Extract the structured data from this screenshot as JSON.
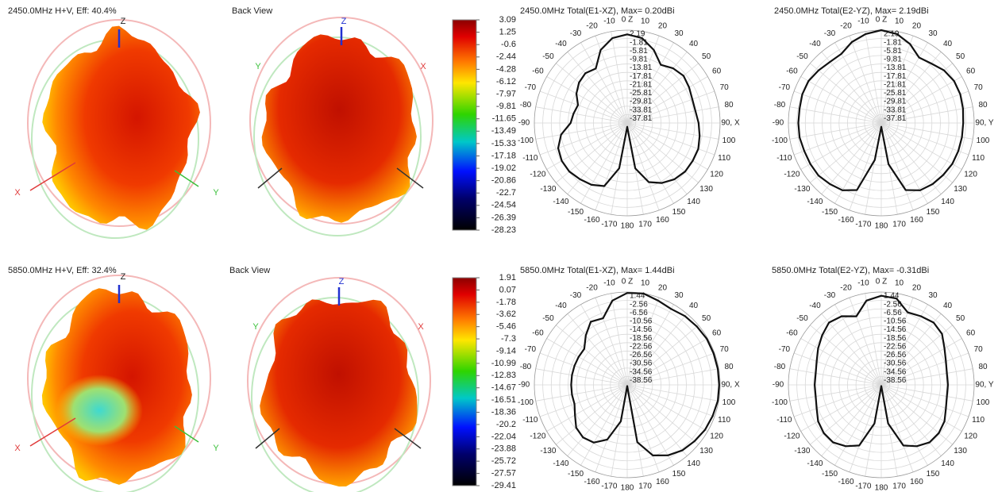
{
  "chart_data": [
    {
      "type": "pattern3d",
      "title": "2450.0MHz H+V, Eff: 40.4%",
      "axes": {
        "z": "Z",
        "x": "X",
        "y": "Y"
      }
    },
    {
      "type": "pattern3d",
      "title": "Back View",
      "axes": {
        "z": "Z",
        "x": "X",
        "y": "Y"
      }
    },
    {
      "type": "colorbar",
      "lim": [
        3.09,
        -28.23
      ],
      "ticks": [
        3.09,
        1.25,
        -0.6,
        -2.44,
        -4.28,
        -6.12,
        -7.97,
        -9.81,
        -11.65,
        -13.49,
        -15.33,
        -17.18,
        -19.02,
        -20.86,
        -22.7,
        -24.54,
        -26.39,
        -28.23
      ]
    },
    {
      "type": "polar",
      "title": "2450.0MHz Total(E1-XZ), Max= 0.20dBi",
      "color": "#111111",
      "rlim": [
        -41.81,
        2.19
      ],
      "rticks": [
        2.19,
        -1.81,
        -5.81,
        -9.81,
        -13.81,
        -17.81,
        -21.81,
        -25.81,
        -29.81,
        -33.81,
        -37.81
      ],
      "thetaticks": [
        {
          "value": 0,
          "label": "0 Z"
        },
        10,
        20,
        30,
        40,
        50,
        60,
        70,
        80,
        {
          "value": 90,
          "label": "90, X"
        },
        100,
        110,
        120,
        130,
        140,
        150,
        160,
        170,
        180,
        -170,
        -160,
        -150,
        -140,
        -130,
        -120,
        -110,
        -100,
        -90,
        -80,
        -70,
        -60,
        -50,
        -40,
        -30,
        -20,
        -10
      ],
      "theta": [
        -170,
        -160,
        -150,
        -140,
        -130,
        -120,
        -110,
        -100,
        -90,
        -80,
        -70,
        -60,
        -50,
        -40,
        -30,
        -20,
        -10,
        0,
        10,
        20,
        30,
        40,
        50,
        60,
        70,
        80,
        90,
        100,
        110,
        120,
        130,
        140,
        150,
        160,
        170,
        180
      ],
      "r": [
        -20,
        -10,
        -8,
        -7,
        -6,
        -6,
        -7,
        -10,
        -15,
        -16,
        -17,
        -14,
        -12,
        -11,
        -12,
        -5,
        -1,
        0.2,
        -1,
        -5,
        -10,
        -8,
        -7,
        -8,
        -9,
        -9,
        -8,
        -7,
        -6,
        -6,
        -6,
        -7,
        -9,
        -12,
        -20,
        -40
      ]
    },
    {
      "type": "polar",
      "title": "2450.0MHz Total(E2-YZ), Max= 2.19dBi",
      "color": "#111111",
      "rlim": [
        -41.81,
        2.19
      ],
      "rticks": [
        2.19,
        -1.81,
        -5.81,
        -9.81,
        -13.81,
        -17.81,
        -21.81,
        -25.81,
        -29.81,
        -33.81,
        -37.81
      ],
      "thetaticks": [
        {
          "value": 0,
          "label": "0 Z"
        },
        10,
        20,
        30,
        40,
        50,
        60,
        70,
        80,
        {
          "value": 90,
          "label": "90, Y"
        },
        100,
        110,
        120,
        130,
        140,
        150,
        160,
        170,
        180,
        -170,
        -160,
        -150,
        -140,
        -130,
        -120,
        -110,
        -100,
        -90,
        -80,
        -70,
        -60,
        -50,
        -40,
        -30,
        -20,
        -10
      ],
      "theta": [
        -170,
        -160,
        -150,
        -140,
        -130,
        -120,
        -110,
        -100,
        -90,
        -80,
        -70,
        -60,
        -50,
        -40,
        -30,
        -20,
        -10,
        0,
        10,
        20,
        30,
        40,
        50,
        60,
        70,
        80,
        90,
        100,
        110,
        120,
        130,
        140,
        150,
        160,
        170,
        180
      ],
      "r": [
        -24,
        -8,
        -5,
        -4,
        -3,
        -3,
        -3,
        -2.5,
        -2.5,
        -2.5,
        -2,
        -2,
        -3,
        -4,
        -4,
        -1,
        1,
        2.19,
        1,
        -2,
        -6,
        -5,
        -3,
        -2,
        -2,
        -2.5,
        -3,
        -3,
        -3,
        -3,
        -3.5,
        -4,
        -5,
        -8,
        -22,
        -40
      ]
    },
    {
      "type": "pattern3d",
      "title": "5850.0MHz H+V, Eff: 32.4%",
      "axes": {
        "z": "Z",
        "x": "X",
        "y": "Y"
      }
    },
    {
      "type": "pattern3d",
      "title": "Back View",
      "axes": {
        "z": "Z",
        "x": "X",
        "y": "Y"
      }
    },
    {
      "type": "colorbar",
      "lim": [
        1.91,
        -29.41
      ],
      "ticks": [
        1.91,
        0.07,
        -1.78,
        -3.62,
        -5.46,
        -7.3,
        -9.14,
        -10.99,
        -12.83,
        -14.67,
        -16.51,
        -18.36,
        -20.2,
        -22.04,
        -23.88,
        -25.72,
        -27.57,
        -29.41
      ]
    },
    {
      "type": "polar",
      "title": "5850.0MHz Total(E1-XZ), Max= 1.44dBi",
      "color": "#111111",
      "rlim": [
        -42.56,
        1.44
      ],
      "rticks": [
        1.44,
        -2.56,
        -6.56,
        -10.56,
        -14.56,
        -18.56,
        -22.56,
        -26.56,
        -30.56,
        -34.56,
        -38.56
      ],
      "thetaticks": [
        {
          "value": 0,
          "label": "0 Z"
        },
        10,
        20,
        30,
        40,
        50,
        60,
        70,
        80,
        {
          "value": 90,
          "label": "90, X"
        },
        100,
        110,
        120,
        130,
        140,
        150,
        160,
        170,
        180,
        -170,
        -160,
        -150,
        -140,
        -130,
        -120,
        -110,
        -100,
        -90,
        -80,
        -70,
        -60,
        -50,
        -40,
        -30,
        -20,
        -10
      ],
      "theta": [
        -170,
        -160,
        -150,
        -140,
        -130,
        -120,
        -110,
        -100,
        -90,
        -80,
        -70,
        -60,
        -50,
        -40,
        -30,
        -20,
        -10,
        0,
        10,
        20,
        30,
        40,
        50,
        60,
        70,
        80,
        90,
        100,
        110,
        120,
        130,
        140,
        150,
        160,
        170,
        180
      ],
      "r": [
        -25,
        -15,
        -11,
        -10,
        -11,
        -14,
        -16,
        -16,
        -16,
        -16,
        -16,
        -16,
        -16,
        -12,
        -8,
        -9,
        -2,
        1,
        1.44,
        0,
        -1,
        0,
        0.5,
        1,
        1,
        1,
        1,
        1,
        0.5,
        0,
        -1,
        -2,
        -4,
        -7,
        -15,
        -42
      ]
    },
    {
      "type": "polar",
      "title": "5850.0MHz Total(E2-YZ), Max= -0.31dBi",
      "color": "#111111",
      "rlim": [
        -42.56,
        1.44
      ],
      "rticks": [
        1.44,
        -2.56,
        -6.56,
        -10.56,
        -14.56,
        -18.56,
        -22.56,
        -26.56,
        -30.56,
        -34.56,
        -38.56
      ],
      "thetaticks": [
        {
          "value": 0,
          "label": "0 Z"
        },
        10,
        20,
        30,
        40,
        50,
        60,
        70,
        80,
        {
          "value": 90,
          "label": "90, Y"
        },
        100,
        110,
        120,
        130,
        140,
        150,
        160,
        170,
        180,
        -170,
        -160,
        -150,
        -140,
        -130,
        -120,
        -110,
        -100,
        -90,
        -80,
        -70,
        -60,
        -50,
        -40,
        -30,
        -20,
        -10
      ],
      "theta": [
        -170,
        -160,
        -150,
        -140,
        -130,
        -120,
        -110,
        -100,
        -90,
        -80,
        -70,
        -60,
        -50,
        -40,
        -30,
        -20,
        -10,
        0,
        10,
        20,
        30,
        40,
        50,
        60,
        70,
        80,
        90,
        100,
        110,
        120,
        130,
        140,
        150,
        160,
        170,
        180
      ],
      "r": [
        -24,
        -12,
        -9,
        -7,
        -7,
        -8,
        -10,
        -11,
        -11,
        -11,
        -10,
        -8,
        -6,
        -4,
        -5,
        -8,
        -2,
        -0.31,
        -1,
        -6,
        -5,
        -4,
        -5,
        -8,
        -10,
        -11,
        -11,
        -11,
        -10,
        -8,
        -7,
        -7,
        -9,
        -12,
        -24,
        -42
      ]
    }
  ]
}
